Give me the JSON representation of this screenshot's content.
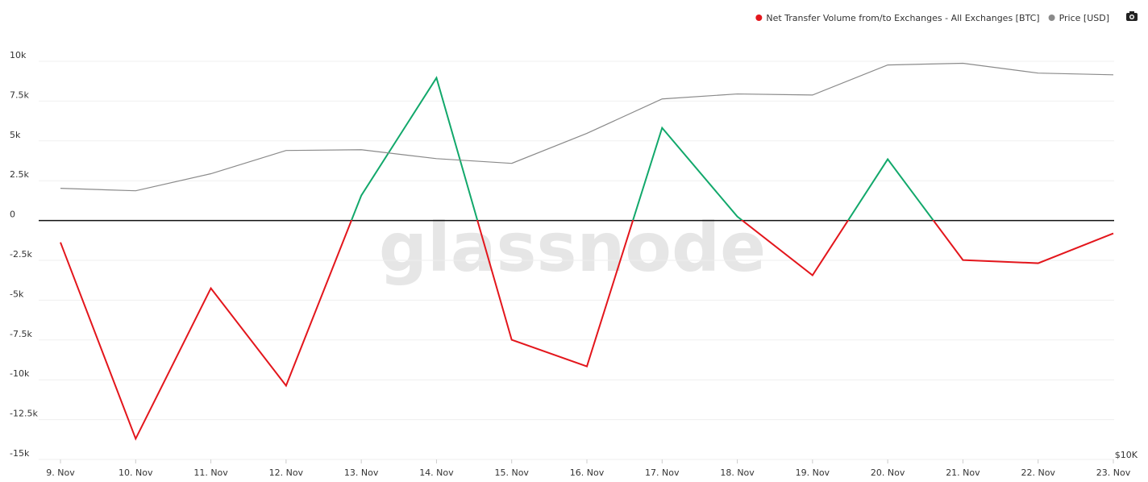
{
  "chart_data": {
    "type": "line",
    "watermark": "glassnode",
    "categories": [
      "9. Nov",
      "10. Nov",
      "11. Nov",
      "12. Nov",
      "13. Nov",
      "14. Nov",
      "15. Nov",
      "16. Nov",
      "17. Nov",
      "18. Nov",
      "19. Nov",
      "20. Nov",
      "21. Nov",
      "22. Nov",
      "23. Nov"
    ],
    "series": [
      {
        "name": "Net Transfer Volume from/to Exchanges - All Exchanges [BTC]",
        "color": "#e3161c",
        "color_above_zero": "#12a86b",
        "values": [
          -1370,
          -13700,
          -4250,
          -10370,
          1570,
          8960,
          -7490,
          -9160,
          5820,
          250,
          -3440,
          3850,
          -2480,
          -2680,
          -810
        ]
      },
      {
        "name": "Price [USD]",
        "color": "#8a8a8a",
        "axis": "y2",
        "values": [
          15370,
          15310,
          15730,
          16320,
          16340,
          16110,
          15990,
          16770,
          17710,
          17850,
          17820,
          18690,
          18740,
          18450,
          18400
        ]
      }
    ],
    "ylim": [
      -15000,
      10000
    ],
    "yticks": [
      {
        "value": 10000,
        "label": "10k"
      },
      {
        "value": 7500,
        "label": "7.5k"
      },
      {
        "value": 5000,
        "label": "5k"
      },
      {
        "value": 2500,
        "label": "2.5k"
      },
      0,
      {
        "value": -2500,
        "label": "-2.5k"
      },
      {
        "value": -5000,
        "label": "-5k"
      },
      {
        "value": -7500,
        "label": "-7.5k"
      },
      {
        "value": -10000,
        "label": "-10k"
      },
      {
        "value": -12500,
        "label": "-12.5k"
      },
      {
        "value": -15000,
        "label": "-15k"
      }
    ],
    "y2lim": [
      10000,
      18800
    ],
    "y2scale": "log",
    "y2ticks": [
      {
        "value": 10000,
        "label": "$10K"
      }
    ],
    "grid": true
  }
}
